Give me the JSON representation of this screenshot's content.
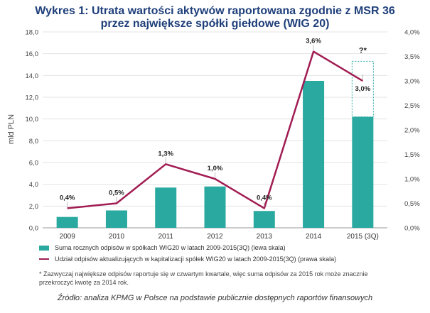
{
  "header": {
    "title_line1": "Wykres 1: Utrata wartości aktywów raportowana zgodnie z MSR 36",
    "title_line2": "przez największe spółki giełdowe (WIG 20)"
  },
  "chart_data": {
    "type": "bar",
    "categories": [
      "2009",
      "2010",
      "2011",
      "2012",
      "2013",
      "2014",
      "2015 (3Q)"
    ],
    "series": [
      {
        "name": "Suma rocznych odpisów w spółkach WIG20 w latach 2009-2015(3Q) (lewa skala)",
        "type": "bar",
        "axis": "left",
        "values": [
          1.0,
          1.6,
          3.7,
          3.8,
          1.55,
          13.5,
          10.2
        ],
        "color": "#2aa9a1"
      },
      {
        "name": "Udział odpisów aktualizujących w kapitalizacji spółek WIG20 w latach 2009-2015(3Q) (prawa skala)",
        "type": "line",
        "axis": "right",
        "values": [
          0.4,
          0.5,
          1.3,
          1.0,
          0.4,
          3.6,
          3.0
        ],
        "labels": [
          "0,4%",
          "0,5%",
          "1,3%",
          "1,0%",
          "0,4%",
          "3,6%",
          "3,0%"
        ],
        "color": "#a11c52"
      }
    ],
    "estimate": {
      "category": "2015 (3Q)",
      "value": 15.3,
      "label": "?*",
      "style": "dashed outline"
    },
    "ylabel": "mld PLN",
    "ylim": [
      0,
      18
    ],
    "y_ticks": [
      "0,0",
      "2,0",
      "4,0",
      "6,0",
      "8,0",
      "10,0",
      "12,0",
      "14,0",
      "16,0",
      "18,0"
    ],
    "y2lim": [
      0,
      4
    ],
    "y2_ticks": [
      "0,0%",
      "0,5%",
      "1,0%",
      "1,5%",
      "2,0%",
      "2,5%",
      "3,0%",
      "3,5%",
      "4,0%"
    ],
    "legend_position": "bottom"
  },
  "footnote": "* Zazwyczaj największe odpisów raportuje się w czwartym kwartale, więc suma odpisów za 2015 rok może znacznie przekroczyć kwotę za 2014 rok.",
  "source": "Źródło: analiza KPMG w Polsce na podstawie publicznie dostępnych raportów finansowych"
}
